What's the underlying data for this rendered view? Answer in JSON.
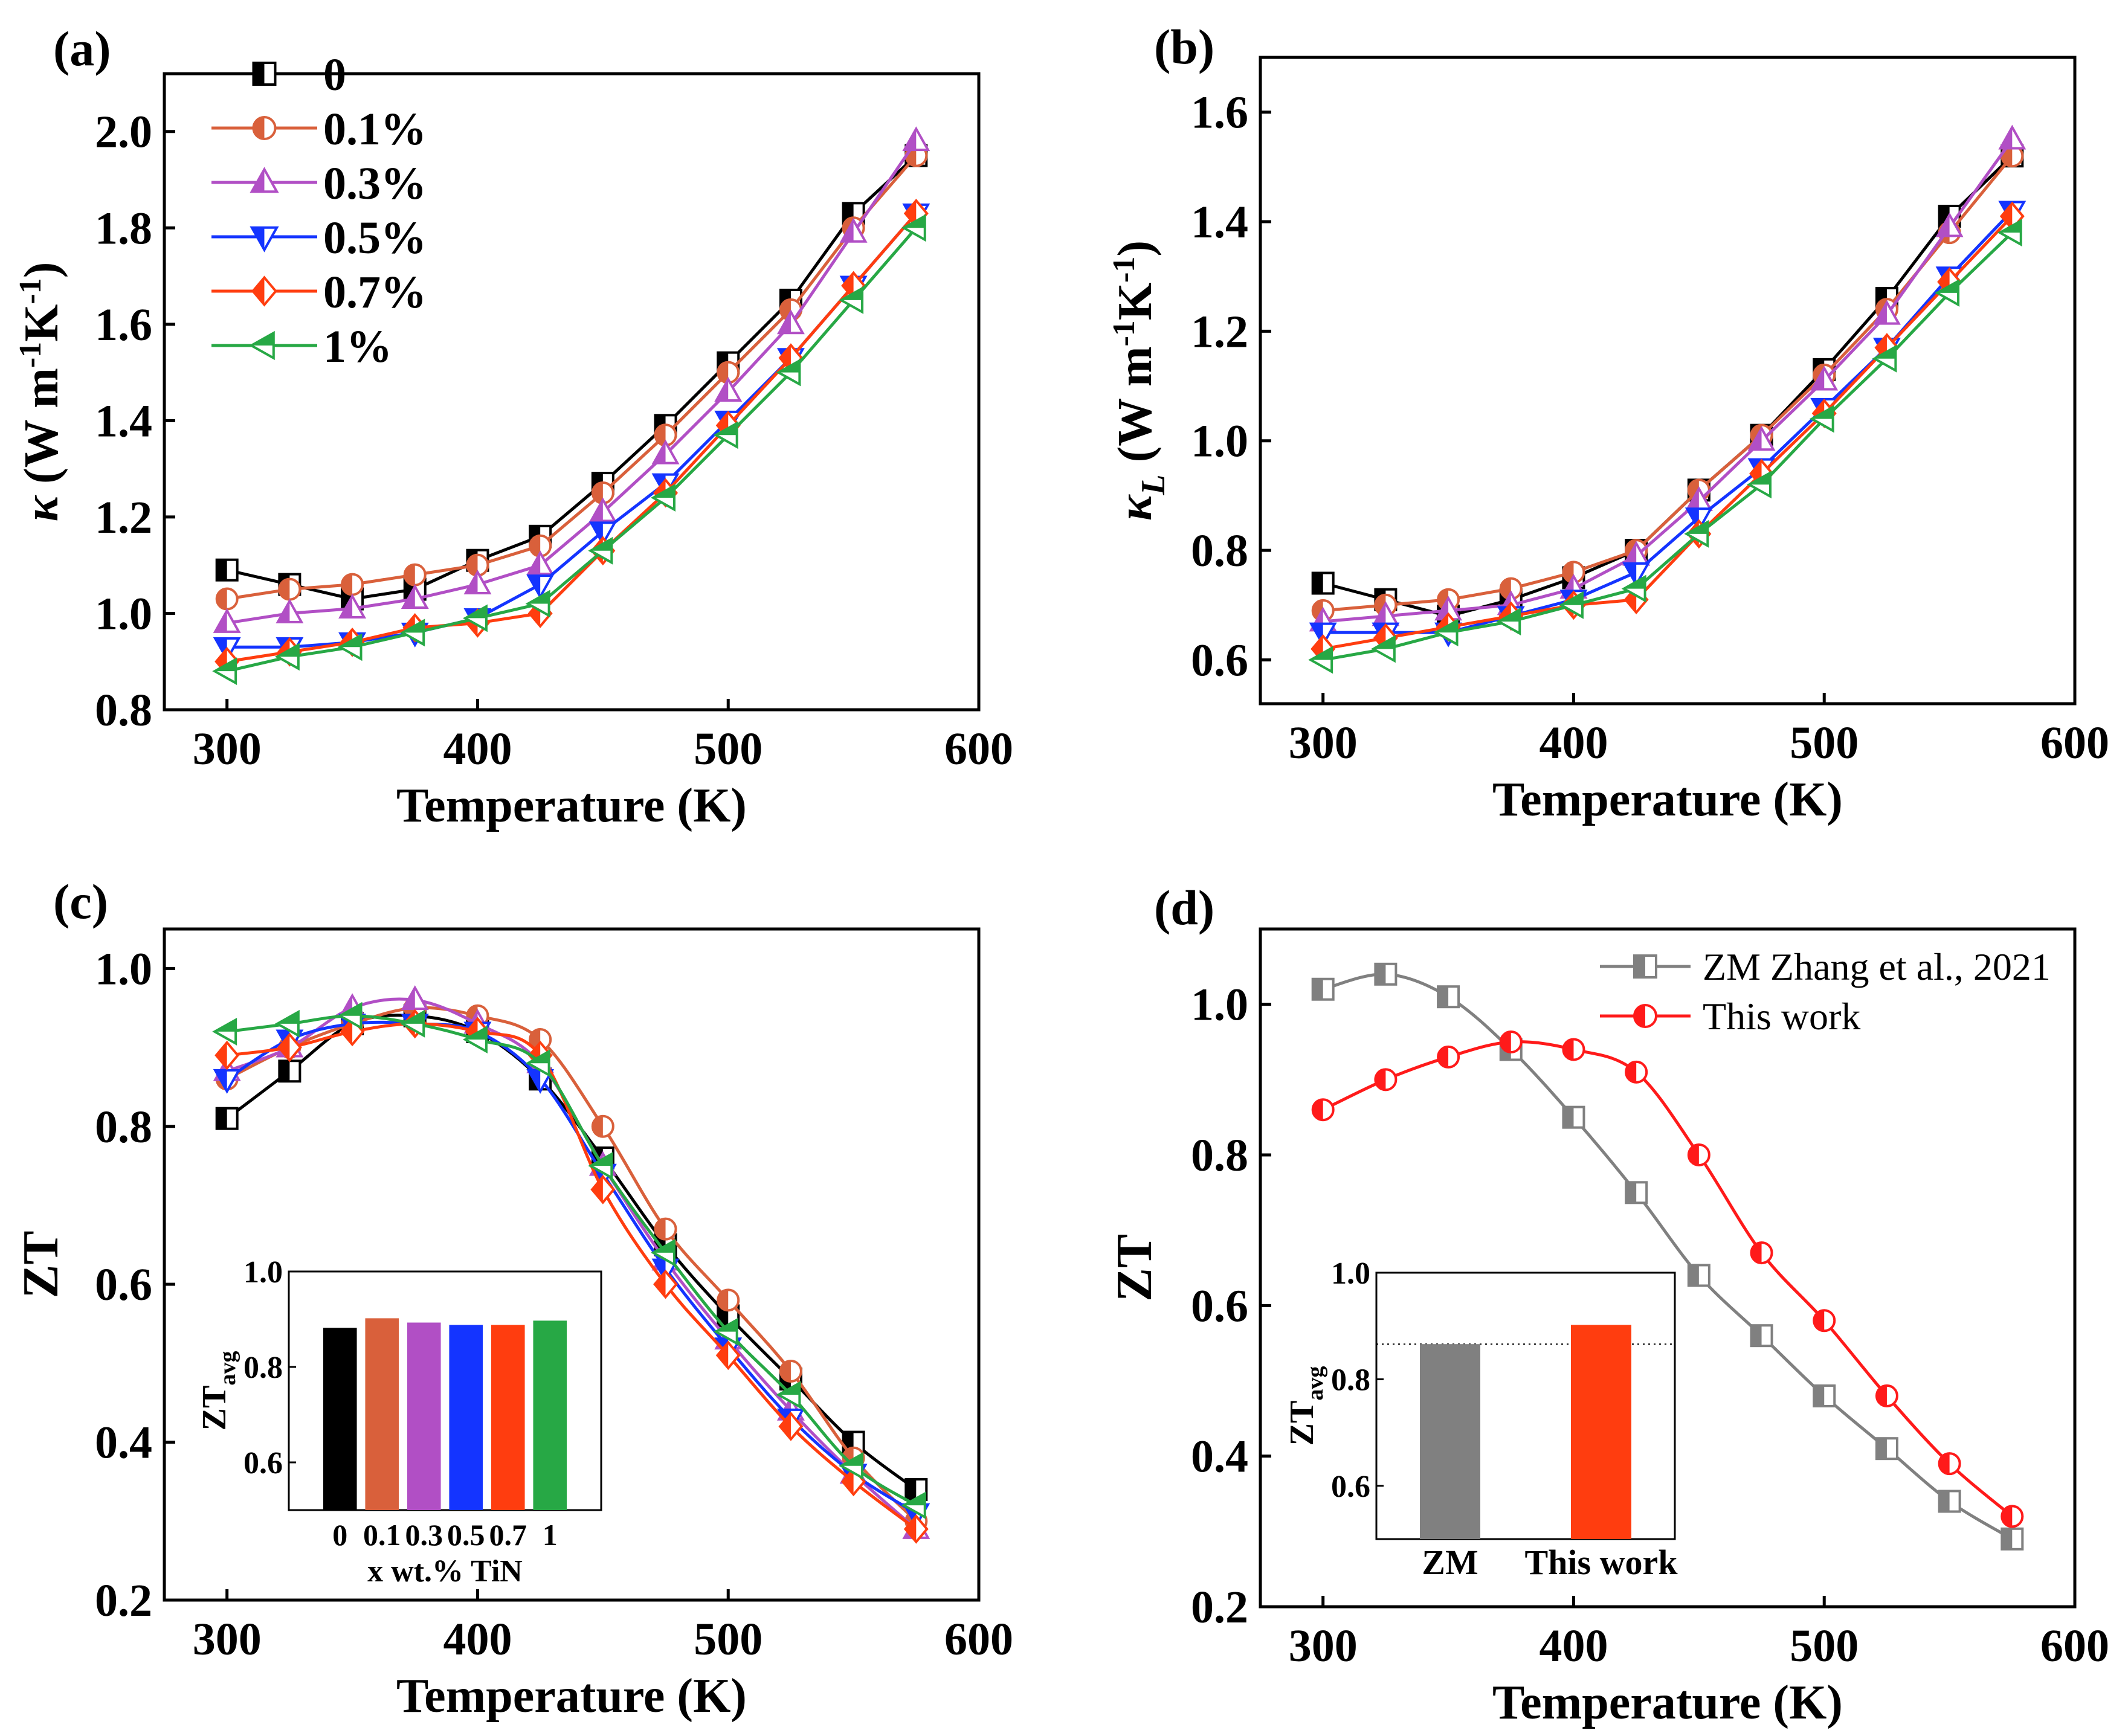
{
  "chart_data": [
    {
      "id": "a",
      "type": "line",
      "panel_label": "(a)",
      "xlabel": "Temperature (K)",
      "ylabel": "κ (W m⁻¹K⁻¹)",
      "xlim": [
        275,
        600
      ],
      "ylim": [
        0.8,
        2.12
      ],
      "xticks": [
        "300",
        "400",
        "500",
        "600"
      ],
      "yticks": [
        "0.8",
        "1.0",
        "1.2",
        "1.4",
        "1.6",
        "1.8",
        "2.0"
      ],
      "x": [
        300,
        325,
        350,
        375,
        400,
        425,
        450,
        475,
        500,
        525,
        550,
        575
      ],
      "series": [
        {
          "name": "0",
          "color": "#000000",
          "marker": "square",
          "values": [
            1.09,
            1.06,
            1.03,
            1.05,
            1.11,
            1.16,
            1.27,
            1.39,
            1.52,
            1.65,
            1.83,
            1.95
          ]
        },
        {
          "name": "0.1%",
          "color": "#d9603b",
          "marker": "circle",
          "values": [
            1.03,
            1.05,
            1.06,
            1.08,
            1.1,
            1.14,
            1.25,
            1.37,
            1.5,
            1.63,
            1.8,
            1.95
          ]
        },
        {
          "name": "0.3%",
          "color": "#b14fc5",
          "marker": "triangle-up",
          "values": [
            0.98,
            1.0,
            1.01,
            1.03,
            1.06,
            1.1,
            1.21,
            1.33,
            1.46,
            1.6,
            1.79,
            1.98
          ]
        },
        {
          "name": "0.5%",
          "color": "#1434ff",
          "marker": "triangle-down",
          "values": [
            0.93,
            0.93,
            0.94,
            0.96,
            0.99,
            1.06,
            1.17,
            1.27,
            1.4,
            1.53,
            1.68,
            1.83
          ]
        },
        {
          "name": "0.7%",
          "color": "#ff3d0f",
          "marker": "diamond",
          "values": [
            0.9,
            0.92,
            0.94,
            0.97,
            0.98,
            1.0,
            1.13,
            1.25,
            1.39,
            1.53,
            1.68,
            1.83
          ]
        },
        {
          "name": "1%",
          "color": "#27a845",
          "marker": "triangle-left",
          "values": [
            0.88,
            0.91,
            0.93,
            0.96,
            0.99,
            1.02,
            1.13,
            1.24,
            1.37,
            1.5,
            1.65,
            1.8
          ]
        }
      ]
    },
    {
      "id": "b",
      "type": "line",
      "panel_label": "(b)",
      "xlabel": "Temperature (K)",
      "ylabel": "κL (W m⁻¹K⁻¹)",
      "ylabel_symbol": "κ",
      "ylabel_sub": "L",
      "ylabel_rest": "(W m⁻¹K⁻¹)",
      "xlim": [
        275,
        600
      ],
      "ylim": [
        0.52,
        1.7
      ],
      "xticks": [
        "300",
        "400",
        "500",
        "600"
      ],
      "yticks": [
        "0.6",
        "0.8",
        "1.0",
        "1.2",
        "1.4",
        "1.6"
      ],
      "x": [
        300,
        325,
        350,
        375,
        400,
        425,
        450,
        475,
        500,
        525,
        550,
        575
      ],
      "series": [
        {
          "name": "0",
          "color": "#000000",
          "marker": "square",
          "values": [
            0.74,
            0.71,
            0.68,
            0.71,
            0.75,
            0.8,
            0.91,
            1.01,
            1.13,
            1.26,
            1.41,
            1.52
          ]
        },
        {
          "name": "0.1%",
          "color": "#d9603b",
          "marker": "circle",
          "values": [
            0.69,
            0.7,
            0.71,
            0.73,
            0.76,
            0.8,
            0.91,
            1.01,
            1.12,
            1.24,
            1.38,
            1.52
          ]
        },
        {
          "name": "0.3%",
          "color": "#b14fc5",
          "marker": "triangle-up",
          "values": [
            0.67,
            0.68,
            0.69,
            0.7,
            0.73,
            0.79,
            0.89,
            1.0,
            1.11,
            1.23,
            1.39,
            1.55
          ]
        },
        {
          "name": "0.5%",
          "color": "#1434ff",
          "marker": "triangle-down",
          "values": [
            0.65,
            0.65,
            0.65,
            0.68,
            0.71,
            0.76,
            0.86,
            0.95,
            1.06,
            1.17,
            1.3,
            1.42
          ]
        },
        {
          "name": "0.7%",
          "color": "#ff3d0f",
          "marker": "diamond",
          "values": [
            0.62,
            0.64,
            0.66,
            0.68,
            0.7,
            0.71,
            0.83,
            0.94,
            1.05,
            1.17,
            1.29,
            1.41
          ]
        },
        {
          "name": "1%",
          "color": "#27a845",
          "marker": "triangle-left",
          "values": [
            0.6,
            0.62,
            0.65,
            0.67,
            0.7,
            0.73,
            0.83,
            0.92,
            1.04,
            1.15,
            1.27,
            1.38
          ]
        }
      ]
    },
    {
      "id": "c",
      "type": "line",
      "panel_label": "(c)",
      "xlabel": "Temperature (K)",
      "ylabel": "ZT",
      "xlim": [
        275,
        600
      ],
      "ylim": [
        0.2,
        1.05
      ],
      "xticks": [
        "300",
        "400",
        "500",
        "600"
      ],
      "yticks": [
        "0.2",
        "0.4",
        "0.6",
        "0.8",
        "1.0"
      ],
      "x": [
        300,
        325,
        350,
        375,
        400,
        425,
        450,
        475,
        500,
        525,
        550,
        575
      ],
      "series": [
        {
          "name": "0",
          "color": "#000000",
          "marker": "square",
          "values": [
            0.81,
            0.87,
            0.93,
            0.94,
            0.92,
            0.86,
            0.76,
            0.65,
            0.56,
            0.48,
            0.4,
            0.34
          ]
        },
        {
          "name": "0.1%",
          "color": "#d9603b",
          "marker": "circle",
          "values": [
            0.86,
            0.9,
            0.93,
            0.95,
            0.94,
            0.91,
            0.8,
            0.67,
            0.58,
            0.49,
            0.38,
            0.3
          ]
        },
        {
          "name": "0.3%",
          "color": "#b14fc5",
          "marker": "triangle-up",
          "values": [
            0.87,
            0.9,
            0.95,
            0.96,
            0.93,
            0.88,
            0.75,
            0.63,
            0.53,
            0.44,
            0.36,
            0.29
          ]
        },
        {
          "name": "0.5%",
          "color": "#1434ff",
          "marker": "triangle-down",
          "values": [
            0.86,
            0.91,
            0.93,
            0.93,
            0.92,
            0.86,
            0.74,
            0.62,
            0.52,
            0.43,
            0.36,
            0.31
          ]
        },
        {
          "name": "0.7%",
          "color": "#ff3d0f",
          "marker": "diamond",
          "values": [
            0.89,
            0.9,
            0.92,
            0.93,
            0.92,
            0.89,
            0.72,
            0.6,
            0.51,
            0.42,
            0.35,
            0.29
          ]
        },
        {
          "name": "1%",
          "color": "#27a845",
          "marker": "triangle-left",
          "values": [
            0.92,
            0.93,
            0.94,
            0.93,
            0.91,
            0.88,
            0.75,
            0.64,
            0.54,
            0.46,
            0.37,
            0.32
          ]
        }
      ],
      "inset": {
        "type": "bar",
        "ylabel": "ZT",
        "ylabel_sub": "avg",
        "xlabel": "x wt.% TiN",
        "ylim": [
          0.5,
          1.0
        ],
        "yticks": [
          "0.6",
          "0.8",
          "1.0"
        ],
        "categories": [
          "0",
          "0.1",
          "0.3",
          "0.5",
          "0.7",
          "1"
        ],
        "values": [
          0.882,
          0.902,
          0.893,
          0.888,
          0.888,
          0.897
        ],
        "colors": [
          "#000000",
          "#d9603b",
          "#b14fc5",
          "#1434ff",
          "#ff3d0f",
          "#27a845"
        ]
      }
    },
    {
      "id": "d",
      "type": "line",
      "panel_label": "(d)",
      "xlabel": "Temperature (K)",
      "ylabel": "ZT",
      "xlim": [
        275,
        600
      ],
      "ylim": [
        0.2,
        1.1
      ],
      "xticks": [
        "300",
        "400",
        "500",
        "600"
      ],
      "yticks": [
        "0.2",
        "0.4",
        "0.6",
        "0.8",
        "1.0"
      ],
      "x": [
        300,
        325,
        350,
        375,
        400,
        425,
        450,
        475,
        500,
        525,
        550,
        575
      ],
      "series": [
        {
          "name": "ZM Zhang et al., 2021",
          "color": "#808080",
          "marker": "square",
          "values": [
            1.02,
            1.04,
            1.01,
            0.94,
            0.85,
            0.75,
            0.64,
            0.56,
            0.48,
            0.41,
            0.34,
            0.29
          ]
        },
        {
          "name": "This work",
          "color": "#ff1a1a",
          "marker": "circle",
          "values": [
            0.86,
            0.9,
            0.93,
            0.95,
            0.94,
            0.91,
            0.8,
            0.67,
            0.58,
            0.48,
            0.39,
            0.32
          ]
        }
      ],
      "inset": {
        "type": "bar",
        "ylabel": "ZT",
        "ylabel_sub": "avg",
        "ylim": [
          0.5,
          1.0
        ],
        "yticks": [
          "0.6",
          "0.8",
          "1.0"
        ],
        "categories": [
          "ZM",
          "This work"
        ],
        "values": [
          0.866,
          0.902
        ],
        "colors": [
          "#808080",
          "#ff3d0f"
        ],
        "reference_line": 0.866
      }
    }
  ]
}
